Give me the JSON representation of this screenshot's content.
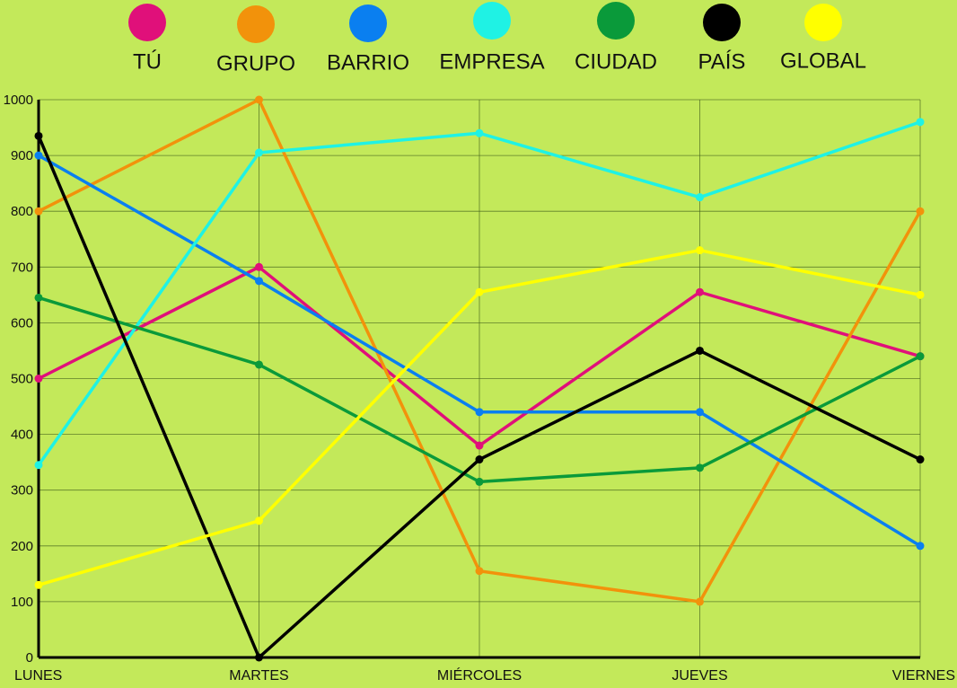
{
  "chart_data": {
    "type": "line",
    "title": "",
    "xlabel": "",
    "ylabel": "",
    "categories": [
      "LUNES",
      "MARTES",
      "MIÉRCOLES",
      "JUEVES",
      "VIERNES"
    ],
    "ylim": [
      0,
      1000
    ],
    "y_ticks": [
      0,
      100,
      200,
      300,
      400,
      500,
      600,
      700,
      800,
      900,
      1000
    ],
    "grid": true,
    "legend_position": "top",
    "legend_marker": "circle",
    "background_color": "#c3e95a",
    "grid_color": "#3e5c1a",
    "axis_color": "#000000",
    "series": [
      {
        "name": "TÚ",
        "color": "#e0107a",
        "values": [
          500,
          700,
          380,
          655,
          540
        ]
      },
      {
        "name": "GRUPO",
        "color": "#f2920b",
        "values": [
          800,
          1000,
          155,
          100,
          800
        ]
      },
      {
        "name": "BARRIO",
        "color": "#0a7ff0",
        "values": [
          900,
          675,
          440,
          440,
          200
        ]
      },
      {
        "name": "EMPRESA",
        "color": "#1ff2e4",
        "values": [
          345,
          905,
          940,
          825,
          960
        ]
      },
      {
        "name": "CIUDAD",
        "color": "#0a9a3a",
        "values": [
          645,
          525,
          315,
          340,
          540
        ]
      },
      {
        "name": "PAÍS",
        "color": "#000000",
        "values": [
          935,
          0,
          355,
          550,
          355
        ]
      },
      {
        "name": "GLOBAL",
        "color": "#ffff00",
        "values": [
          130,
          245,
          655,
          730,
          650
        ]
      }
    ]
  }
}
